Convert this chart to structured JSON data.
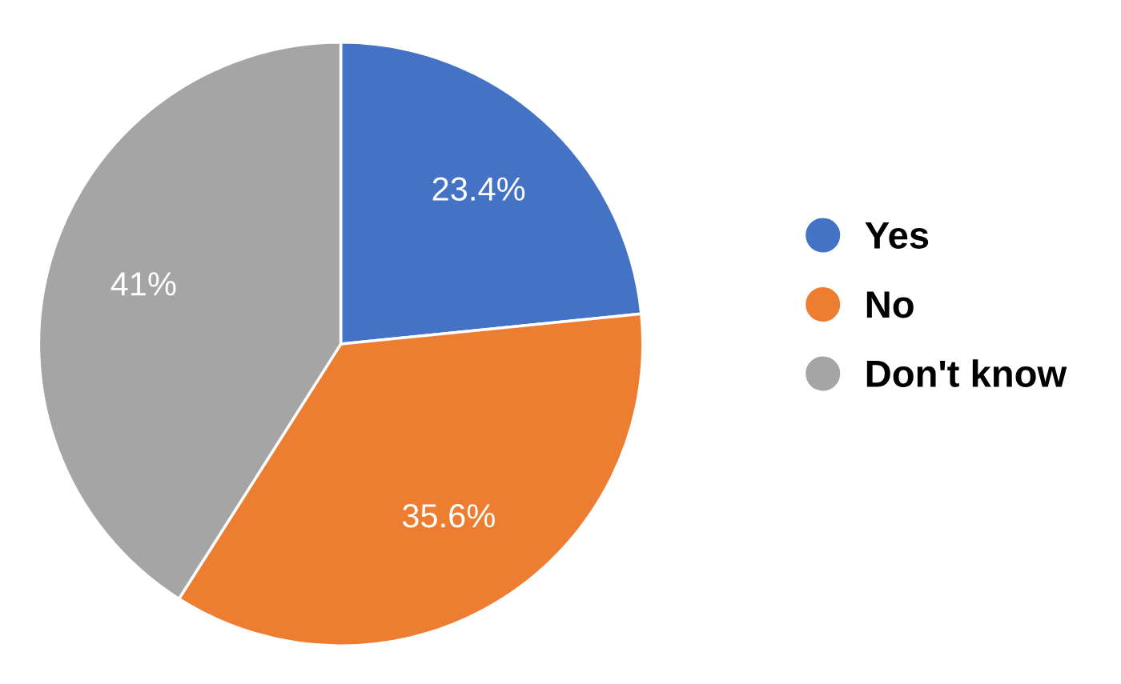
{
  "chart_data": {
    "type": "pie",
    "categories": [
      "Yes",
      "No",
      "Don't know"
    ],
    "values": [
      23.4,
      35.6,
      41
    ],
    "colors": [
      "#4472c4",
      "#ed7d31",
      "#a5a5a5"
    ],
    "value_labels": [
      "23.4%",
      "35.6%",
      "41%"
    ],
    "legend": "right"
  }
}
